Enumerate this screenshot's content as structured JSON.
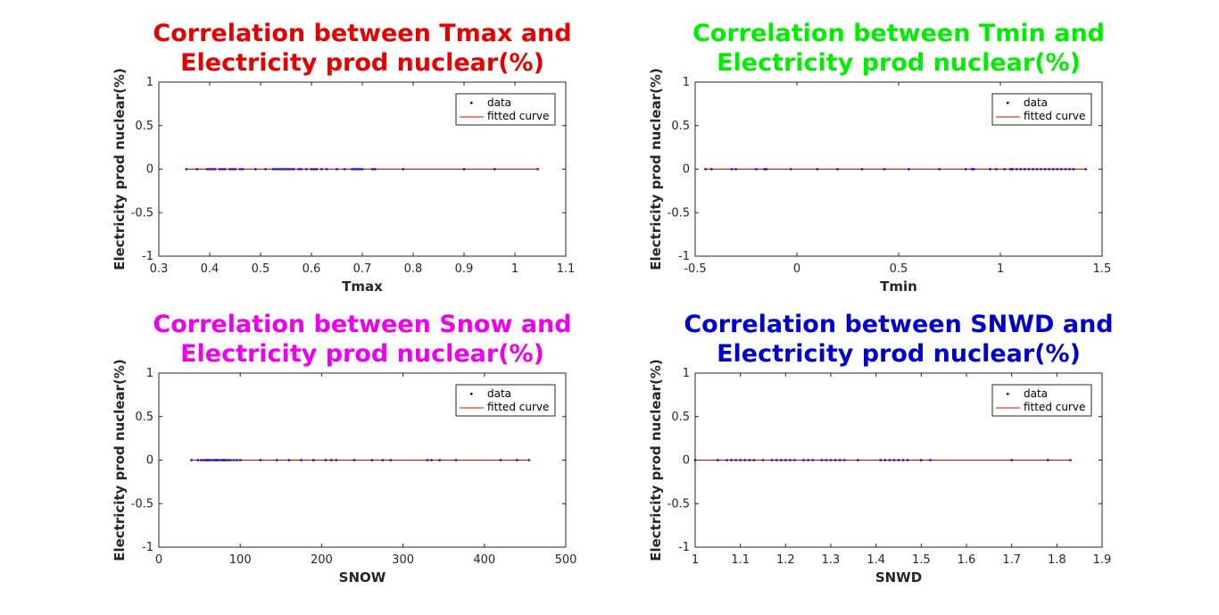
{
  "chart_data": [
    {
      "type": "scatter",
      "title": [
        "Correlation between Tmax and",
        "Electricity prod nuclear(%)"
      ],
      "title_color": "#e60000",
      "xlabel": "Tmax",
      "ylabel": "Electricity prod nuclear(%)",
      "xlim": [
        0.3,
        1.1
      ],
      "ylim": [
        -1,
        1
      ],
      "xticks": [
        "0.3",
        "0.4",
        "0.5",
        "0.6",
        "0.7",
        "0.8",
        "0.9",
        "1",
        "1.1"
      ],
      "yticks": [
        "-1",
        "-0.5",
        "0",
        "0.5",
        "1"
      ],
      "legend": [
        "data",
        "fitted curve"
      ],
      "legend_position": "top-right",
      "series": [
        {
          "name": "data",
          "style": "points",
          "color": "#0000cc",
          "x": [
            0.354,
            0.375,
            0.395,
            0.4,
            0.405,
            0.41,
            0.42,
            0.425,
            0.43,
            0.44,
            0.445,
            0.45,
            0.46,
            0.465,
            0.49,
            0.51,
            0.525,
            0.53,
            0.535,
            0.54,
            0.545,
            0.55,
            0.555,
            0.56,
            0.565,
            0.575,
            0.58,
            0.59,
            0.6,
            0.605,
            0.61,
            0.62,
            0.63,
            0.65,
            0.665,
            0.68,
            0.685,
            0.69,
            0.695,
            0.7,
            0.72,
            0.725,
            0.78,
            0.9,
            0.96,
            1.045
          ],
          "y": [
            0,
            0,
            0,
            0,
            0,
            0,
            0,
            0,
            0,
            0,
            0,
            0,
            0,
            0,
            0,
            0,
            0,
            0,
            0,
            0,
            0,
            0,
            0,
            0,
            0,
            0,
            0,
            0,
            0,
            0,
            0,
            0,
            0,
            0,
            0,
            0,
            0,
            0,
            0,
            0,
            0,
            0,
            0,
            0,
            0,
            0
          ]
        },
        {
          "name": "fitted curve",
          "style": "line",
          "color": "#e60000",
          "x": [
            0.354,
            1.045
          ],
          "y": [
            0,
            0
          ]
        }
      ]
    },
    {
      "type": "scatter",
      "title": [
        "Correlation between Tmin and",
        "Electricity prod nuclear(%)"
      ],
      "title_color": "#00ee00",
      "xlabel": "Tmin",
      "ylabel": "Electricity prod nuclear(%)",
      "xlim": [
        -0.5,
        1.5
      ],
      "ylim": [
        -1,
        1
      ],
      "xticks": [
        "-0.5",
        "0",
        "0.5",
        "1",
        "1.5"
      ],
      "yticks": [
        "-1",
        "-0.5",
        "0",
        "0.5",
        "1"
      ],
      "legend": [
        "data",
        "fitted curve"
      ],
      "legend_position": "top-right",
      "series": [
        {
          "name": "data",
          "style": "points",
          "color": "#0000cc",
          "x": [
            -0.45,
            -0.42,
            -0.32,
            -0.3,
            -0.2,
            -0.16,
            -0.15,
            -0.03,
            0.1,
            0.2,
            0.32,
            0.43,
            0.55,
            0.7,
            0.83,
            0.86,
            0.87,
            0.95,
            0.98,
            1.02,
            1.05,
            1.06,
            1.08,
            1.1,
            1.12,
            1.14,
            1.16,
            1.18,
            1.2,
            1.22,
            1.24,
            1.26,
            1.28,
            1.3,
            1.32,
            1.34,
            1.36,
            1.42
          ],
          "y": [
            0,
            0,
            0,
            0,
            0,
            0,
            0,
            0,
            0,
            0,
            0,
            0,
            0,
            0,
            0,
            0,
            0,
            0,
            0,
            0,
            0,
            0,
            0,
            0,
            0,
            0,
            0,
            0,
            0,
            0,
            0,
            0,
            0,
            0,
            0,
            0,
            0,
            0
          ]
        },
        {
          "name": "fitted curve",
          "style": "line",
          "color": "#e60000",
          "x": [
            -0.45,
            1.42
          ],
          "y": [
            0,
            0
          ]
        }
      ]
    },
    {
      "type": "scatter",
      "title": [
        "Correlation between Snow and",
        "Electricity prod nuclear(%)"
      ],
      "title_color": "#ee00ee",
      "xlabel": "SNOW",
      "ylabel": "Electricity prod nuclear(%)",
      "xlim": [
        0,
        500
      ],
      "ylim": [
        -1,
        1
      ],
      "xticks": [
        "0",
        "100",
        "200",
        "300",
        "400",
        "500"
      ],
      "yticks": [
        "-1",
        "-0.5",
        "0",
        "0.5",
        "1"
      ],
      "legend": [
        "data",
        "fitted curve"
      ],
      "legend_position": "top-right",
      "series": [
        {
          "name": "data",
          "style": "points",
          "color": "#0000cc",
          "x": [
            40,
            48,
            52,
            55,
            58,
            60,
            62,
            65,
            68,
            70,
            72,
            75,
            78,
            80,
            82,
            85,
            88,
            92,
            96,
            100,
            125,
            145,
            160,
            175,
            190,
            205,
            212,
            218,
            240,
            262,
            275,
            285,
            330,
            335,
            345,
            365,
            420,
            440,
            455
          ],
          "y": [
            0,
            0,
            0,
            0,
            0,
            0,
            0,
            0,
            0,
            0,
            0,
            0,
            0,
            0,
            0,
            0,
            0,
            0,
            0,
            0,
            0,
            0,
            0,
            0,
            0,
            0,
            0,
            0,
            0,
            0,
            0,
            0,
            0,
            0,
            0,
            0,
            0,
            0,
            0
          ]
        },
        {
          "name": "fitted curve",
          "style": "line",
          "color": "#e60000",
          "x": [
            40,
            455
          ],
          "y": [
            0,
            0
          ]
        }
      ]
    },
    {
      "type": "scatter",
      "title": [
        "Correlation between SNWD and",
        "Electricity prod nuclear(%)"
      ],
      "title_color": "#0000cc",
      "xlabel": "SNWD",
      "ylabel": "Electricity prod nuclear(%)",
      "xlim": [
        1,
        1.9
      ],
      "ylim": [
        -1,
        1
      ],
      "xticks": [
        "1",
        "1.1",
        "1.2",
        "1.3",
        "1.4",
        "1.5",
        "1.6",
        "1.7",
        "1.8",
        "1.9"
      ],
      "yticks": [
        "-1",
        "-0.5",
        "0",
        "0.5",
        "1"
      ],
      "legend": [
        "data",
        "fitted curve"
      ],
      "legend_position": "top-right",
      "series": [
        {
          "name": "data",
          "style": "points",
          "color": "#0000cc",
          "x": [
            1.0,
            1.05,
            1.07,
            1.08,
            1.09,
            1.1,
            1.11,
            1.12,
            1.13,
            1.15,
            1.17,
            1.18,
            1.19,
            1.2,
            1.21,
            1.22,
            1.24,
            1.25,
            1.26,
            1.28,
            1.29,
            1.3,
            1.31,
            1.32,
            1.33,
            1.36,
            1.41,
            1.42,
            1.43,
            1.44,
            1.45,
            1.46,
            1.47,
            1.5,
            1.52,
            1.7,
            1.78,
            1.83
          ],
          "y": [
            0,
            0,
            0,
            0,
            0,
            0,
            0,
            0,
            0,
            0,
            0,
            0,
            0,
            0,
            0,
            0,
            0,
            0,
            0,
            0,
            0,
            0,
            0,
            0,
            0,
            0,
            0,
            0,
            0,
            0,
            0,
            0,
            0,
            0,
            0,
            0,
            0,
            0
          ]
        },
        {
          "name": "fitted curve",
          "style": "line",
          "color": "#e60000",
          "x": [
            1.0,
            1.83
          ],
          "y": [
            0,
            0
          ]
        }
      ]
    }
  ]
}
